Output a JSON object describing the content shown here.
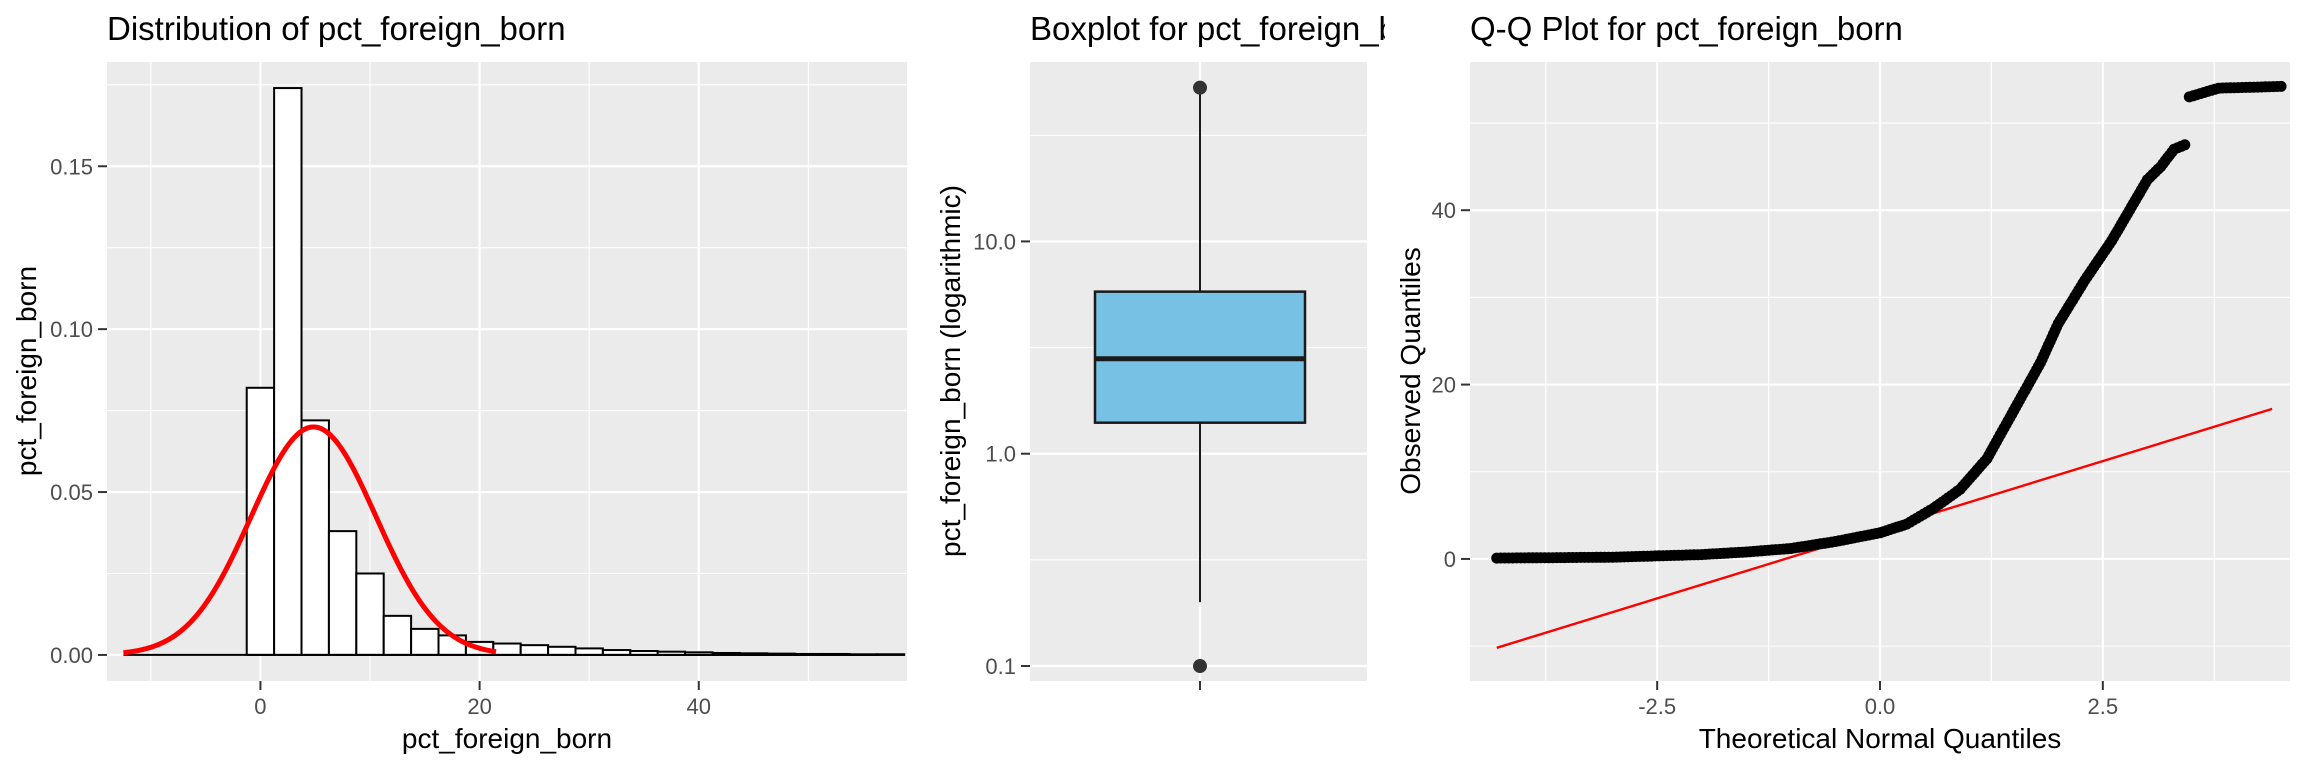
{
  "colors": {
    "panel_bg": "#ebebeb",
    "hist_fill": "#ffffff",
    "hist_stroke": "#000000",
    "density_curve": "#ff0000",
    "box_fill": "#76c1e4",
    "box_stroke": "#1a1a1a",
    "qq_points": "#000000",
    "qq_line": "#ff0000"
  },
  "chart_data": [
    {
      "type": "histogram",
      "title": "Distribution of pct_foreign_born",
      "xlabel": "pct_foreign_born",
      "ylabel": "pct_foreign_born",
      "xlim": [
        -14,
        59
      ],
      "ylim": [
        -0.008,
        0.182
      ],
      "x_ticks": [
        0,
        20,
        40
      ],
      "x_tick_labels": [
        "0",
        "20",
        "40"
      ],
      "y_ticks": [
        0.0,
        0.05,
        0.1,
        0.15
      ],
      "y_tick_labels": [
        "0.00",
        "0.05",
        "0.10",
        "0.15"
      ],
      "grid": true,
      "bin_width": 2.5,
      "bins_start": -1.25,
      "density": [
        0.082,
        0.174,
        0.072,
        0.038,
        0.025,
        0.012,
        0.008,
        0.006,
        0.004,
        0.0035,
        0.003,
        0.0025,
        0.002,
        0.0015,
        0.0012,
        0.001,
        0.0008,
        0.0006,
        0.0005,
        0.0004,
        0.0003,
        0.0003,
        0.0002,
        0.0002
      ],
      "normal_curve": {
        "mean": 4.85,
        "sd": 5.7,
        "x_range": [
          -12.5,
          21.5
        ]
      }
    },
    {
      "type": "boxplot",
      "title": "Boxplot for pct_foreign_born",
      "ylabel": "pct_foreign_born (logarithmic)",
      "y_scale": "log10",
      "ylim": [
        0.085,
        70
      ],
      "y_ticks": [
        0.1,
        1.0,
        10.0
      ],
      "y_tick_labels": [
        "0.1",
        "1.0",
        "10.0"
      ],
      "grid": true,
      "stats": {
        "min": 0.2,
        "q1": 1.4,
        "median": 2.8,
        "q3": 5.8,
        "max": 50
      },
      "outliers": [
        0.1,
        53
      ]
    },
    {
      "type": "scatter",
      "title": "Q-Q Plot for pct_foreign_born",
      "xlabel": "Theoretical Normal Quantiles",
      "ylabel": "Observed Quantiles",
      "xlim": [
        -4.6,
        4.6
      ],
      "ylim": [
        -14,
        57
      ],
      "x_ticks": [
        -2.5,
        0.0,
        2.5
      ],
      "x_tick_labels": [
        "-2.5",
        "0.0",
        "2.5"
      ],
      "y_ticks": [
        0,
        20,
        40
      ],
      "y_tick_labels": [
        "0",
        "20",
        "40"
      ],
      "grid": true,
      "quantile_curve": [
        [
          -4.3,
          0.1
        ],
        [
          -3.0,
          0.2
        ],
        [
          -2.0,
          0.5
        ],
        [
          -1.5,
          0.8
        ],
        [
          -1.0,
          1.2
        ],
        [
          -0.5,
          2.0
        ],
        [
          0.0,
          3.0
        ],
        [
          0.3,
          4.0
        ],
        [
          0.6,
          5.8
        ],
        [
          0.9,
          8.0
        ],
        [
          1.2,
          11.5
        ],
        [
          1.5,
          17.0
        ],
        [
          1.8,
          22.5
        ],
        [
          2.0,
          27.0
        ],
        [
          2.3,
          32.0
        ],
        [
          2.6,
          36.5
        ],
        [
          2.8,
          40.0
        ],
        [
          3.0,
          43.5
        ],
        [
          3.15,
          45.0
        ],
        [
          3.3,
          47.0
        ],
        [
          3.42,
          47.5
        ],
        [
          3.47,
          53.0
        ],
        [
          3.8,
          54.0
        ],
        [
          4.5,
          54.2
        ]
      ],
      "reference_line": {
        "intercept": 3.35,
        "slope": 3.15,
        "x_range": [
          -4.3,
          4.4
        ]
      }
    }
  ]
}
